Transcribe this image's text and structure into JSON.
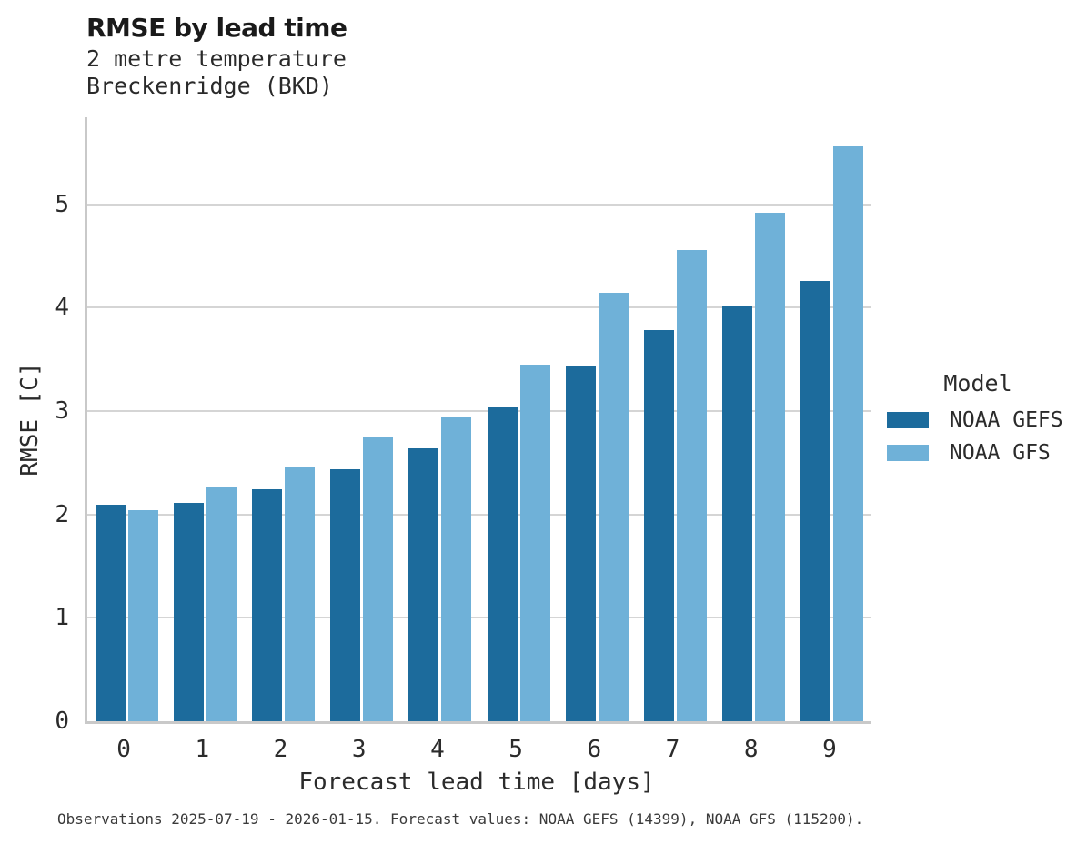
{
  "header": {
    "title": "RMSE by lead time",
    "subtitle": "2 metre temperature\nBreckenridge (BKD)"
  },
  "chart_data": {
    "type": "bar",
    "title": "RMSE by lead time",
    "subtitle": [
      "2 metre temperature",
      "Breckenridge (BKD)"
    ],
    "categories": [
      "0",
      "1",
      "2",
      "3",
      "4",
      "5",
      "6",
      "7",
      "8",
      "9"
    ],
    "series": [
      {
        "name": "NOAA GEFS",
        "color": "#1c6b9c",
        "values": [
          2.09,
          2.11,
          2.24,
          2.44,
          2.64,
          3.04,
          3.44,
          3.78,
          4.02,
          4.26
        ]
      },
      {
        "name": "NOAA GFS",
        "color": "#6fb1d8",
        "values": [
          2.04,
          2.26,
          2.45,
          2.74,
          2.95,
          3.45,
          4.14,
          4.56,
          4.92,
          5.56
        ]
      }
    ],
    "xlabel": "Forecast lead time [days]",
    "ylabel": "RMSE [C]",
    "yticks": [
      0,
      1,
      2,
      3,
      4,
      5
    ],
    "ylim": [
      0,
      5.84
    ],
    "grid": "horizontal",
    "legend_position": "right"
  },
  "legend": {
    "title": "Model",
    "entries": [
      "NOAA GEFS",
      "NOAA GFS"
    ]
  },
  "footnote": {
    "text": "Observations 2025-07-19 - 2026-01-15. Forecast values: NOAA GEFS (14399), NOAA GFS (115200)."
  },
  "colors": {
    "series_dark": "#1c6b9c",
    "series_light": "#6fb1d8",
    "gridline": "#d5d5d5",
    "axis_spine": "#c9c9c9",
    "text": "#262626"
  }
}
